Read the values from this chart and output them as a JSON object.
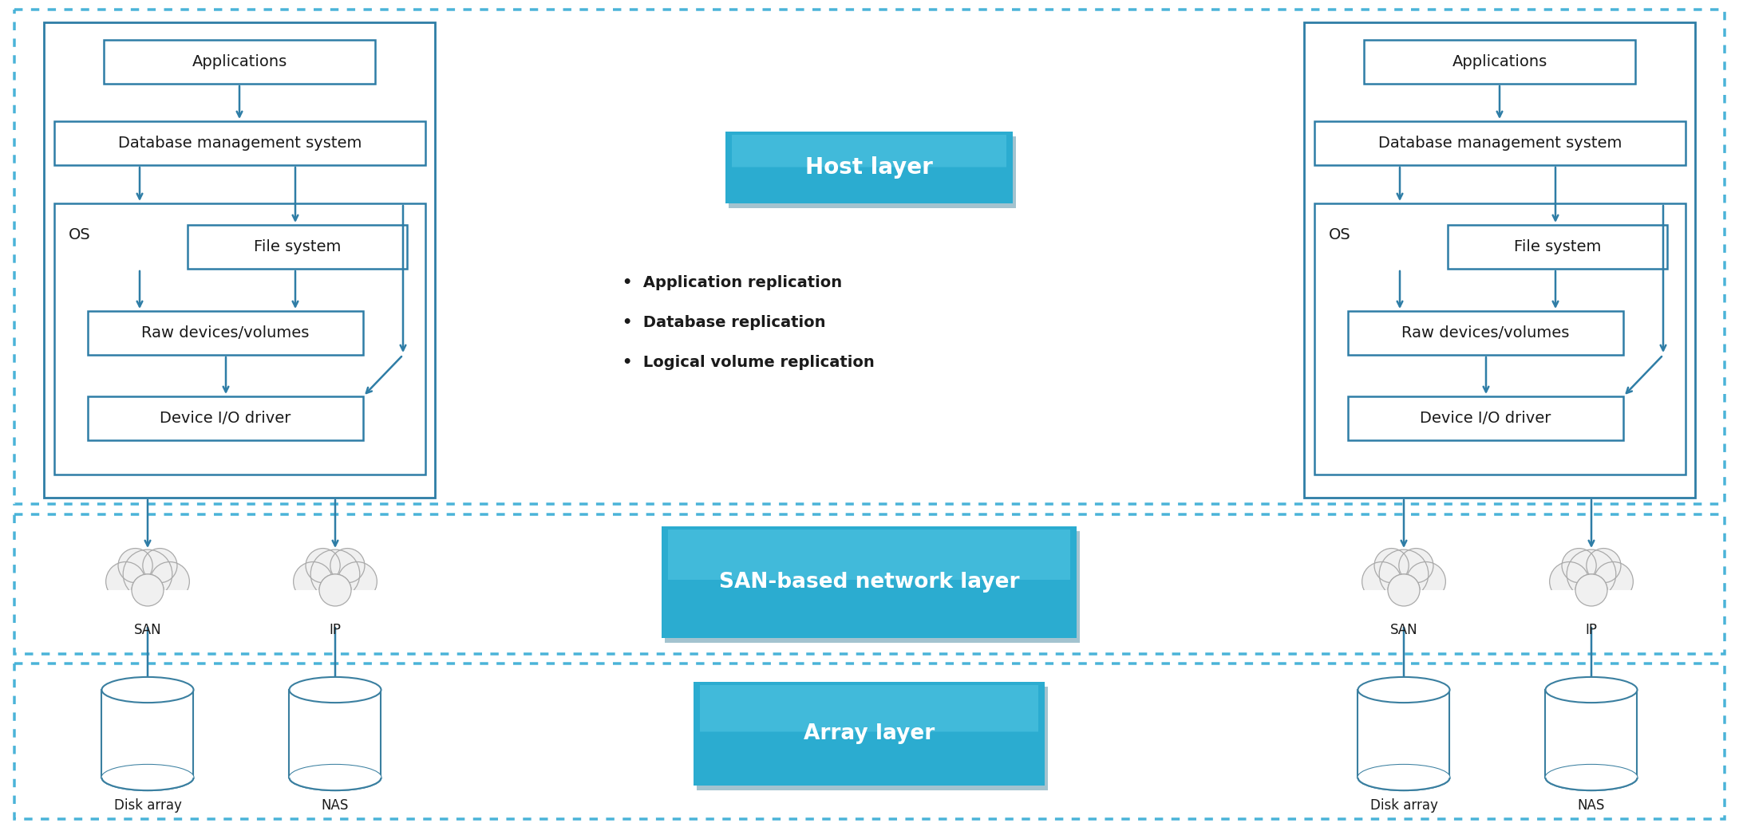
{
  "bg_color": "#ffffff",
  "box_edge": "#2e7da6",
  "dash_color": "#4ab3d8",
  "arrow_color": "#2e7da6",
  "teal_dark": "#1a8aaa",
  "teal_mid": "#2aa8cc",
  "teal_light": "#5cc8e8",
  "text_dark": "#1a1a1a",
  "white_text": "#ffffff",
  "cloud_fill": "#f0f0f0",
  "cloud_edge": "#aaaaaa",
  "cyl_edge": "#3a7fa0",
  "left_apps_label": "Applications",
  "left_dbms_label": "Database management system",
  "left_os_label": "OS",
  "left_fs_label": "File system",
  "left_raw_label": "Raw devices/volumes",
  "left_dev_label": "Device I/O driver",
  "right_apps_label": "Applications",
  "right_dbms_label": "Database management system",
  "right_os_label": "OS",
  "right_fs_label": "File system",
  "right_raw_label": "Raw devices/volumes",
  "right_dev_label": "Device I/O driver",
  "host_layer_label": "Host layer",
  "bullet1": "Application replication",
  "bullet2": "Database replication",
  "bullet3": "Logical volume replication",
  "san_net_label": "SAN-based network layer",
  "array_label": "Array layer",
  "san_left": "SAN",
  "ip_left": "IP",
  "san_right": "SAN",
  "ip_right": "IP",
  "disk_left": "Disk array",
  "nas_left": "NAS",
  "disk_right": "Disk array",
  "nas_right": "NAS"
}
